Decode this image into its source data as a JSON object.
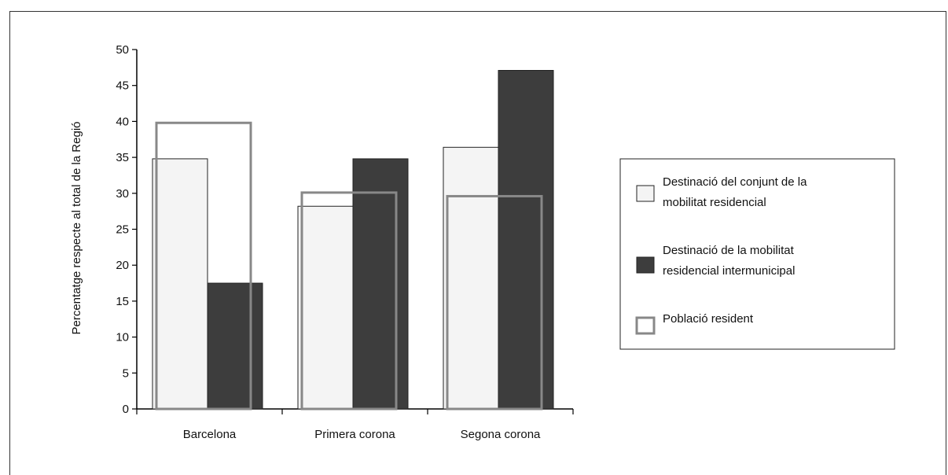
{
  "chart_data": {
    "type": "bar",
    "title": "",
    "ylabel": "Percentatge respecte al total de la Regió",
    "xlabel": "",
    "ylim": [
      0,
      50
    ],
    "yticks": [
      0,
      5,
      10,
      15,
      20,
      25,
      30,
      35,
      40,
      45,
      50
    ],
    "categories": [
      "Barcelona",
      "Primera corona",
      "Segona corona"
    ],
    "series": [
      {
        "name": "Destinació del conjunt de la mobilitat residencial",
        "values": [
          34.8,
          28.2,
          36.4
        ],
        "style": "filled",
        "color": "#f4f4f4"
      },
      {
        "name": "Destinació de la mobilitat residencial intermunicipal",
        "values": [
          17.5,
          34.8,
          47.1
        ],
        "style": "filled",
        "color": "#3d3d3d"
      },
      {
        "name": "Població resident",
        "values": [
          39.8,
          30.1,
          29.6
        ],
        "style": "outline",
        "color": "#888888"
      }
    ],
    "legend": {
      "position": "right",
      "items": [
        [
          "Destinació del conjunt de la",
          "mobilitat residencial"
        ],
        [
          "Destinació de la mobilitat",
          "residencial intermunicipal"
        ],
        [
          "Població resident"
        ]
      ]
    },
    "grid": false
  }
}
